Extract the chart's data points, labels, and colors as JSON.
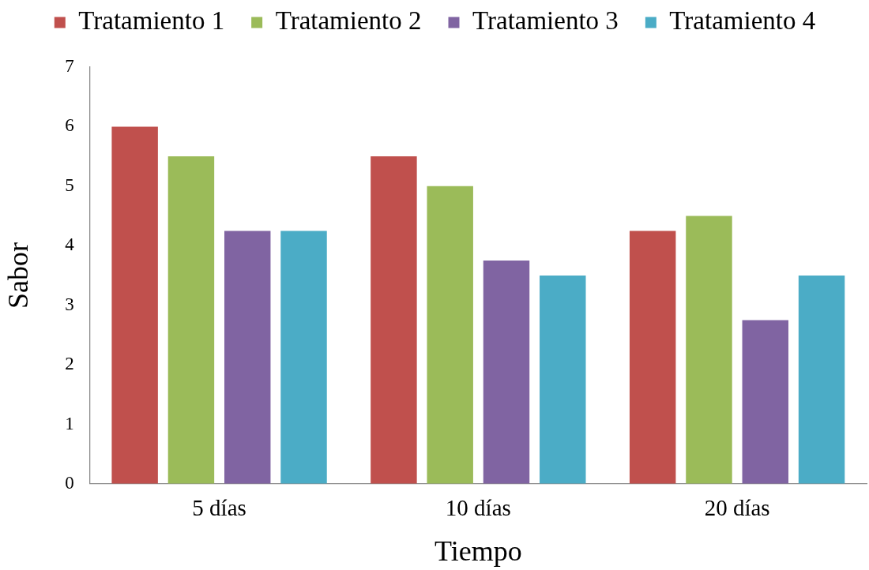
{
  "chart_data": {
    "type": "bar",
    "xlabel": "Tiempo",
    "ylabel": "Sabor",
    "categories": [
      "5 días",
      "10 días",
      "20 días"
    ],
    "series": [
      {
        "name": "Tratamiento 1",
        "color": "#c0504d",
        "values": [
          6,
          5.5,
          4.25
        ]
      },
      {
        "name": "Tratamiento 2",
        "color": "#9bbb59",
        "values": [
          5.5,
          5,
          4.5
        ]
      },
      {
        "name": "Tratamiento 3",
        "color": "#8064a2",
        "values": [
          4.25,
          3.75,
          2.75
        ]
      },
      {
        "name": "Tratamiento 4",
        "color": "#4bacc6",
        "values": [
          4.25,
          3.5,
          3.5
        ]
      }
    ],
    "ylim": [
      0,
      7
    ],
    "yticks": [
      0,
      1,
      2,
      3,
      4,
      5,
      6,
      7
    ],
    "legend": "top"
  }
}
